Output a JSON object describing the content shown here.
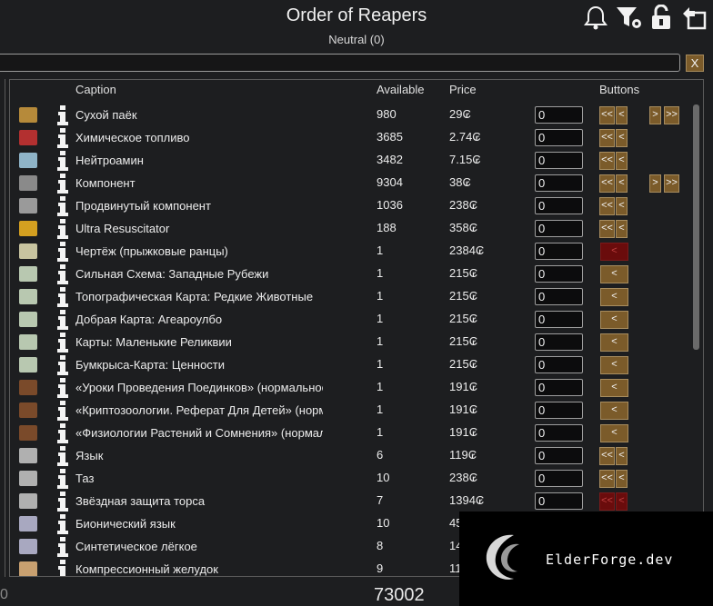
{
  "header": {
    "title": "Order of Reapers",
    "subtitle": "Neutral (0)"
  },
  "toolbar_icons": [
    "bell-icon",
    "filter-settings-icon",
    "unlock-icon",
    "export-icon"
  ],
  "search": {
    "value": "",
    "clear_label": "X"
  },
  "columns": {
    "caption": "Caption",
    "available": "Available",
    "price": "Price",
    "buttons": "Buttons"
  },
  "rows": [
    {
      "icon": "ration-pack-icon",
      "caption": "Сухой паёк",
      "available": "980",
      "price": "29₢",
      "qty": "0",
      "buttons": [
        "<<",
        "<"
      ],
      "right_buttons": [
        ">",
        ">>"
      ],
      "red": false
    },
    {
      "icon": "fuel-canister-icon",
      "caption": "Химическое топливо",
      "available": "3685",
      "price": "2.74₢",
      "qty": "0",
      "buttons": [
        "<<",
        "<"
      ],
      "right_buttons": [],
      "red": false
    },
    {
      "icon": "neutroamine-icon",
      "caption": "Нейтроамин",
      "available": "3482",
      "price": "7.15₢",
      "qty": "0",
      "buttons": [
        "<<",
        "<"
      ],
      "right_buttons": [],
      "red": false
    },
    {
      "icon": "component-icon",
      "caption": "Компонент",
      "available": "9304",
      "price": "38₢",
      "qty": "0",
      "buttons": [
        "<<",
        "<"
      ],
      "right_buttons": [
        ">",
        ">>"
      ],
      "red": false
    },
    {
      "icon": "advanced-component-icon",
      "caption": "Продвинутый компонент",
      "available": "1036",
      "price": "238₢",
      "qty": "0",
      "buttons": [
        "<<",
        "<"
      ],
      "right_buttons": [],
      "red": false
    },
    {
      "icon": "resuscitator-icon",
      "caption": "Ultra Resuscitator",
      "available": "188",
      "price": "358₢",
      "qty": "0",
      "buttons": [
        "<<",
        "<"
      ],
      "right_buttons": [],
      "red": false
    },
    {
      "icon": "blueprint-icon",
      "caption": "Чертёж (прыжковые ранцы)",
      "available": "1",
      "price": "2384₢",
      "qty": "0",
      "buttons": [
        "<"
      ],
      "right_buttons": [],
      "red": true
    },
    {
      "icon": "map-icon",
      "caption": "Сильная Схема: Западные Рубежи",
      "available": "1",
      "price": "215₢",
      "qty": "0",
      "buttons": [
        "<"
      ],
      "right_buttons": [],
      "red": false
    },
    {
      "icon": "map-icon",
      "caption": "Топографическая Карта: Редкие Животные",
      "available": "1",
      "price": "215₢",
      "qty": "0",
      "buttons": [
        "<"
      ],
      "right_buttons": [],
      "red": false
    },
    {
      "icon": "map-icon",
      "caption": "Добрая Карта: Агеароулбо",
      "available": "1",
      "price": "215₢",
      "qty": "0",
      "buttons": [
        "<"
      ],
      "right_buttons": [],
      "red": false
    },
    {
      "icon": "map-icon",
      "caption": "Карты: Маленькие Реликвии",
      "available": "1",
      "price": "215₢",
      "qty": "0",
      "buttons": [
        "<"
      ],
      "right_buttons": [],
      "red": false
    },
    {
      "icon": "map-icon",
      "caption": "Бумкрыса-Карта: Ценности",
      "available": "1",
      "price": "215₢",
      "qty": "0",
      "buttons": [
        "<"
      ],
      "right_buttons": [],
      "red": false
    },
    {
      "icon": "book-icon",
      "caption": "«Уроки Проведения Поединков» (нормальное)",
      "available": "1",
      "price": "191₢",
      "qty": "0",
      "buttons": [
        "<"
      ],
      "right_buttons": [],
      "red": false
    },
    {
      "icon": "book-icon",
      "caption": "«Криптозоологии. Реферат Для Детей» (нормальное)",
      "available": "1",
      "price": "191₢",
      "qty": "0",
      "buttons": [
        "<"
      ],
      "right_buttons": [],
      "red": false
    },
    {
      "icon": "book-icon",
      "caption": "«Физиологии Растений и Сомнения» (нормальное)",
      "available": "1",
      "price": "191₢",
      "qty": "0",
      "buttons": [
        "<"
      ],
      "right_buttons": [],
      "red": false
    },
    {
      "icon": "body-part-icon",
      "caption": "Язык",
      "available": "6",
      "price": "119₢",
      "qty": "0",
      "buttons": [
        "<<",
        "<"
      ],
      "right_buttons": [],
      "red": false
    },
    {
      "icon": "body-part-icon",
      "caption": "Таз",
      "available": "10",
      "price": "238₢",
      "qty": "0",
      "buttons": [
        "<<",
        "<"
      ],
      "right_buttons": [],
      "red": false
    },
    {
      "icon": "body-part-icon",
      "caption": "Звёздная защита торса",
      "available": "7",
      "price": "1394₢",
      "qty": "0",
      "buttons": [
        "<<",
        "<"
      ],
      "right_buttons": [],
      "red": true
    },
    {
      "icon": "bionic-part-icon",
      "caption": "Бионический язык",
      "available": "10",
      "price": "45",
      "qty": "",
      "buttons": [],
      "right_buttons": [],
      "red": false
    },
    {
      "icon": "bionic-part-icon",
      "caption": "Синтетическое лёгкое",
      "available": "8",
      "price": "14",
      "qty": "",
      "buttons": [],
      "right_buttons": [],
      "red": false
    },
    {
      "icon": "stomach-icon",
      "caption": "Компрессионный желудок",
      "available": "9",
      "price": "11",
      "qty": "",
      "buttons": [],
      "right_buttons": [],
      "red": false
    }
  ],
  "footer": {
    "left_value": "0",
    "total": "73002"
  },
  "watermark": {
    "text": "ElderForge.dev"
  }
}
